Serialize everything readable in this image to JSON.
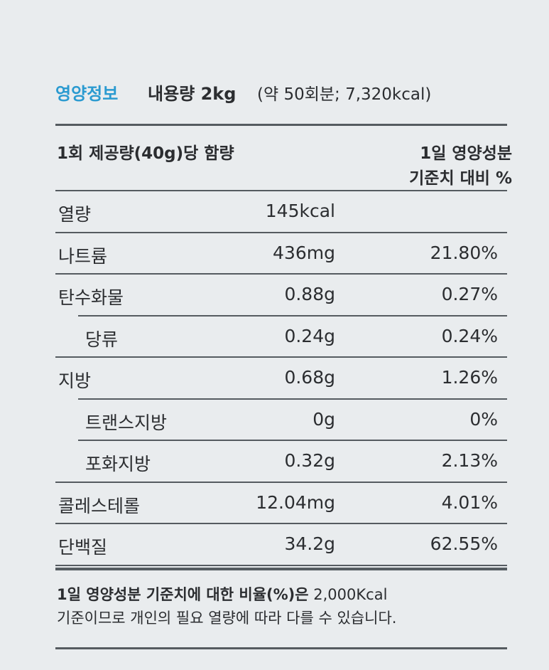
{
  "header": {
    "title": "영양정보",
    "content": "내용량 2kg",
    "content_detail": "(약 50회분; 7,320kcal)"
  },
  "table": {
    "header_left": "1회 제공량(40g)당 함량",
    "header_right": [
      "1일 영양성분",
      "기준치 대비 %"
    ],
    "rows": [
      {
        "name": "열량",
        "amount": "145kcal"
      },
      {
        "name": "나트륨",
        "amount": "436mg",
        "percent": "21.80%"
      },
      {
        "name": "탄수화물",
        "amount": "0.88g",
        "percent": "0.27%",
        "subrows": [
          {
            "name": "당류",
            "amount": "0.24g",
            "percent": "0.24%"
          }
        ]
      },
      {
        "name": "지방",
        "amount": "0.68g",
        "percent": "1.26%",
        "subrows": [
          {
            "name": "트랜스지방",
            "amount": "0g",
            "percent": "0%"
          },
          {
            "name": "포화지방",
            "amount": "0.32g",
            "percent": "2.13%"
          }
        ]
      },
      {
        "name": "콜레스테롤",
        "amount": "12.04mg",
        "percent": "4.01%"
      },
      {
        "name": "단백질",
        "amount": "34.2g",
        "percent": "62.55%"
      }
    ]
  },
  "footnote": {
    "bold": "1일 영양성분 기준치에 대한 비율(%)은",
    "rest": "2,000Kcal",
    "line2": "기준이므로 개인의 필요 열량에 따라 다를 수 있습니다."
  }
}
